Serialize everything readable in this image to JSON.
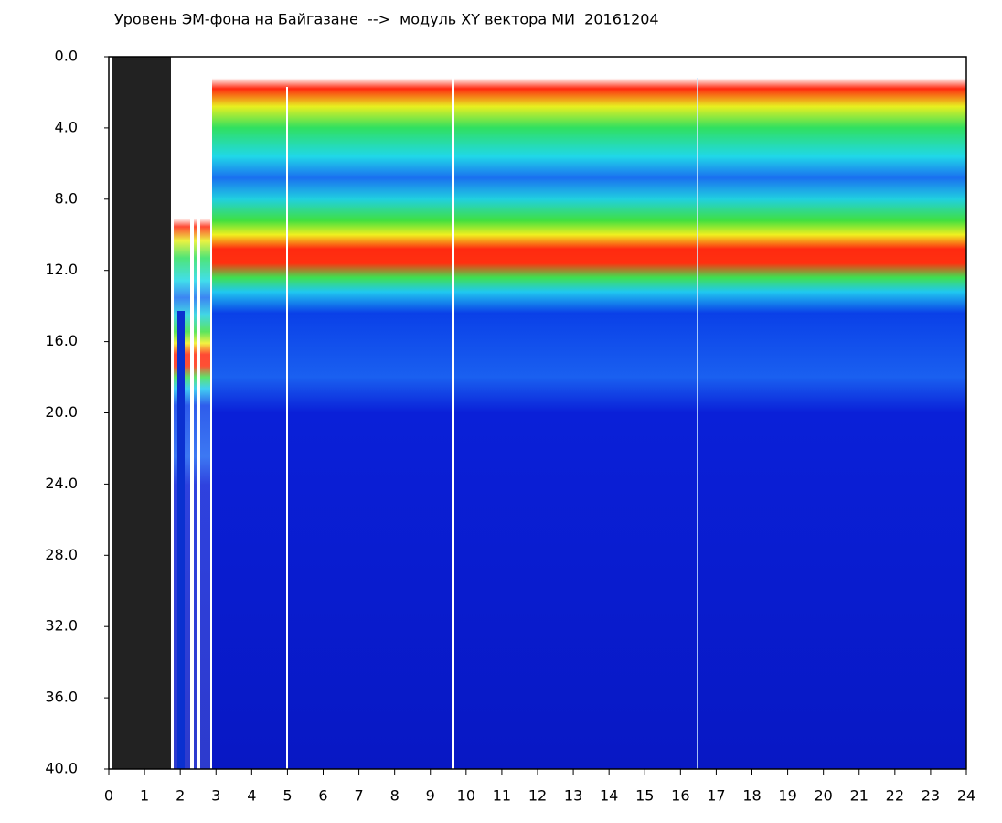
{
  "chart_data": {
    "type": "heatmap",
    "title": "Уровень ЭМ-фона на Байгазане  -->  модуль XY вектора МИ  20161204",
    "xlim": [
      0,
      24
    ],
    "xticks": [
      0,
      1,
      2,
      3,
      4,
      5,
      6,
      7,
      8,
      9,
      10,
      11,
      12,
      13,
      14,
      15,
      16,
      17,
      18,
      19,
      20,
      21,
      22,
      23,
      24
    ],
    "ylim": [
      0,
      40
    ],
    "yticks": [
      {
        "value": 0,
        "label": "0.0"
      },
      {
        "value": 4,
        "label": "4.0"
      },
      {
        "value": 8,
        "label": "8.0"
      },
      {
        "value": 12,
        "label": "12.0"
      },
      {
        "value": 16,
        "label": "16.0"
      },
      {
        "value": 20,
        "label": "20.0"
      },
      {
        "value": 24,
        "label": "24.0"
      },
      {
        "value": 28,
        "label": "28.0"
      },
      {
        "value": 32,
        "label": "32.0"
      },
      {
        "value": 36,
        "label": "36.0"
      },
      {
        "value": 40,
        "label": "40.0"
      }
    ]
  }
}
